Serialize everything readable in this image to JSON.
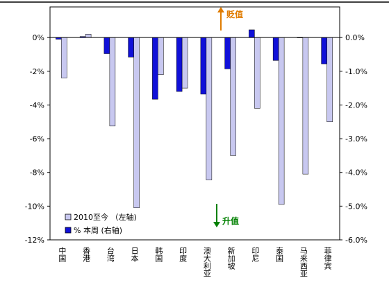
{
  "chart_data": {
    "type": "bar",
    "categories": [
      "中国",
      "香港",
      "台湾",
      "日本",
      "韩国",
      "印度",
      "澳大利亚",
      "新加坡",
      "印尼",
      "泰国",
      "马来西亚",
      "菲律宾"
    ],
    "series": [
      {
        "name": "2010至今 （左轴)",
        "axis": "left",
        "color": "#c8c8f0",
        "values": [
          -2.4,
          0.2,
          -5.25,
          -10.1,
          -2.2,
          -3.0,
          -8.45,
          -7.0,
          -4.2,
          -9.9,
          -8.1,
          -5.0
        ]
      },
      {
        "name": "% 本周 (右轴)",
        "axis": "right",
        "color": "#1010d8",
        "values": [
          -0.05,
          0.03,
          -0.48,
          -0.58,
          -1.83,
          -1.6,
          -1.68,
          -0.93,
          0.23,
          -0.68,
          -0.01,
          -0.78
        ]
      }
    ],
    "y_left": {
      "range": [
        -12,
        0
      ],
      "ticks": [
        0,
        -2,
        -4,
        -6,
        -8,
        -10,
        -12
      ],
      "tick_labels": [
        "0%",
        "-2%",
        "-4%",
        "-6%",
        "-8%",
        "-10%",
        "-12%"
      ]
    },
    "y_right": {
      "range": [
        -6,
        0
      ],
      "ticks": [
        0,
        -1,
        -2,
        -3,
        -4,
        -5,
        -6
      ],
      "tick_labels": [
        "0.0%",
        "-1.0%",
        "-2.0%",
        "-3.0%",
        "-4.0%",
        "-5.0%",
        "-6.0%"
      ]
    },
    "annotations": {
      "depreciate": "贬值",
      "appreciate": "升值",
      "depreciate_color": "#e07b00",
      "appreciate_color": "#008000"
    },
    "legend_position": "bottom-left",
    "grid": false
  }
}
